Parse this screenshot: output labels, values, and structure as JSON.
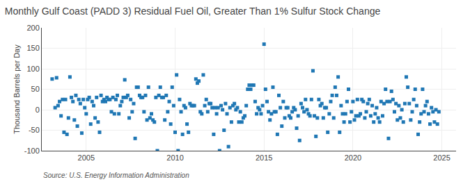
{
  "chart_data": {
    "type": "scatter",
    "title": "Monthly Gulf Coast (PADD 3) Residual Fuel Oil, Greater Than 1% Sulfur Stock Change",
    "ylabel": "Thousand Barrels per Day",
    "source": "Source: U.S. Energy Information Administration",
    "marker": "square",
    "grid": true,
    "xlim": [
      2002.5,
      2025.8
    ],
    "xticks": [
      2005,
      2010,
      2015,
      2020,
      2025
    ],
    "ylim": [
      -100,
      200
    ],
    "yticks": [
      -100,
      -50,
      0,
      50,
      100,
      150,
      200
    ],
    "x": [
      2003.083,
      2003.25,
      2003.333,
      2003.417,
      2003.5,
      2003.583,
      2003.667,
      2003.75,
      2003.833,
      2003.917,
      2004.0,
      2004.083,
      2004.167,
      2004.25,
      2004.333,
      2004.417,
      2004.5,
      2004.583,
      2004.667,
      2004.75,
      2004.833,
      2004.917,
      2005.0,
      2005.083,
      2005.167,
      2005.25,
      2005.333,
      2005.417,
      2005.5,
      2005.583,
      2005.667,
      2005.75,
      2005.833,
      2005.917,
      2006.0,
      2006.083,
      2006.167,
      2006.25,
      2006.333,
      2006.417,
      2006.5,
      2006.583,
      2006.667,
      2006.75,
      2006.833,
      2006.917,
      2007.0,
      2007.083,
      2007.167,
      2007.25,
      2007.333,
      2007.417,
      2007.5,
      2007.583,
      2007.667,
      2007.75,
      2007.833,
      2007.917,
      2008.0,
      2008.083,
      2008.167,
      2008.25,
      2008.333,
      2008.417,
      2008.5,
      2008.583,
      2008.667,
      2008.75,
      2008.833,
      2008.917,
      2009.0,
      2009.083,
      2009.167,
      2009.25,
      2009.333,
      2009.417,
      2009.5,
      2009.583,
      2009.667,
      2009.75,
      2009.833,
      2009.917,
      2010.0,
      2010.083,
      2010.167,
      2010.25,
      2010.333,
      2010.417,
      2010.5,
      2010.583,
      2010.667,
      2010.75,
      2010.833,
      2010.917,
      2011.0,
      2011.083,
      2011.167,
      2011.25,
      2011.333,
      2011.417,
      2011.5,
      2011.583,
      2011.667,
      2011.75,
      2011.833,
      2011.917,
      2012.0,
      2012.083,
      2012.167,
      2012.25,
      2012.333,
      2012.417,
      2012.5,
      2012.583,
      2012.667,
      2012.75,
      2012.833,
      2012.917,
      2013.0,
      2013.083,
      2013.167,
      2013.25,
      2013.333,
      2013.417,
      2013.5,
      2013.583,
      2013.667,
      2013.75,
      2013.833,
      2013.917,
      2014.0,
      2014.083,
      2014.167,
      2014.25,
      2014.333,
      2014.417,
      2014.5,
      2014.583,
      2014.667,
      2014.75,
      2014.833,
      2014.917,
      2015.0,
      2015.083,
      2015.167,
      2015.25,
      2015.333,
      2015.417,
      2015.5,
      2015.583,
      2015.667,
      2015.75,
      2015.833,
      2015.917,
      2016.0,
      2016.083,
      2016.167,
      2016.25,
      2016.333,
      2016.417,
      2016.5,
      2016.583,
      2016.667,
      2016.75,
      2016.833,
      2016.917,
      2017.0,
      2017.083,
      2017.167,
      2017.25,
      2017.333,
      2017.417,
      2017.5,
      2017.583,
      2017.667,
      2017.75,
      2017.833,
      2017.917,
      2018.0,
      2018.083,
      2018.167,
      2018.25,
      2018.333,
      2018.417,
      2018.5,
      2018.583,
      2018.667,
      2018.75,
      2018.833,
      2018.917,
      2019.0,
      2019.083,
      2019.167,
      2019.25,
      2019.333,
      2019.417,
      2019.5,
      2019.583,
      2019.667,
      2019.75,
      2019.833,
      2019.917,
      2020.0,
      2020.083,
      2020.167,
      2020.25,
      2020.333,
      2020.417,
      2020.5,
      2020.583,
      2020.667,
      2020.75,
      2020.833,
      2020.917,
      2021.0,
      2021.083,
      2021.167,
      2021.25,
      2021.333,
      2021.417,
      2021.5,
      2021.583,
      2021.667,
      2021.75,
      2021.833,
      2021.917,
      2022.0,
      2022.083,
      2022.167,
      2022.25,
      2022.333,
      2022.417,
      2022.5,
      2022.583,
      2022.667,
      2022.75,
      2022.833,
      2022.917,
      2023.0,
      2023.083,
      2023.167,
      2023.25,
      2023.333,
      2023.417,
      2023.5,
      2023.583,
      2023.667,
      2023.75,
      2023.833,
      2023.917,
      2024.0,
      2024.083,
      2024.167,
      2024.25,
      2024.333,
      2024.417,
      2024.5,
      2024.583,
      2024.667,
      2024.75,
      2024.833
    ],
    "values": [
      75,
      5,
      78,
      10,
      20,
      -15,
      25,
      -55,
      25,
      -60,
      -20,
      80,
      30,
      20,
      -25,
      35,
      -40,
      25,
      15,
      -57,
      25,
      5,
      -10,
      25,
      30,
      -35,
      20,
      10,
      -20,
      30,
      -30,
      -55,
      35,
      20,
      25,
      20,
      30,
      25,
      25,
      -5,
      30,
      -10,
      25,
      35,
      -10,
      10,
      20,
      30,
      73,
      30,
      35,
      -20,
      25,
      -5,
      15,
      -70,
      55,
      55,
      35,
      30,
      30,
      -5,
      35,
      -25,
      55,
      -20,
      -10,
      -25,
      -30,
      30,
      -100,
      35,
      55,
      30,
      30,
      -25,
      35,
      -5,
      20,
      -35,
      55,
      10,
      -55,
      85,
      -100,
      25,
      -5,
      -60,
      10,
      5,
      -35,
      -55,
      15,
      10,
      10,
      10,
      75,
      65,
      70,
      -5,
      -10,
      85,
      10,
      25,
      -5,
      15,
      15,
      5,
      -60,
      5,
      -10,
      5,
      -100,
      10,
      0,
      -50,
      15,
      -10,
      -90,
      5,
      -30,
      10,
      15,
      0,
      5,
      -30,
      -5,
      -30,
      -20,
      -15,
      10,
      50,
      60,
      50,
      60,
      60,
      20,
      -10,
      5,
      0,
      -10,
      10,
      160,
      50,
      20,
      -5,
      -25,
      -10,
      55,
      -5,
      -5,
      -60,
      35,
      5,
      -40,
      20,
      -20,
      5,
      5,
      -15,
      -20,
      -5,
      5,
      0,
      -45,
      -15,
      -75,
      15,
      5,
      -5,
      25,
      0,
      -10,
      -15,
      25,
      95,
      -15,
      -65,
      -20,
      25,
      10,
      15,
      -20,
      5,
      5,
      -55,
      -10,
      20,
      35,
      -20,
      55,
      35,
      80,
      -55,
      10,
      -10,
      -30,
      -10,
      20,
      50,
      -30,
      -5,
      20,
      -25,
      -15,
      25,
      -15,
      -10,
      25,
      20,
      -20,
      -5,
      15,
      25,
      -15,
      10,
      -30,
      -10,
      5,
      -20,
      -30,
      20,
      -15,
      15,
      50,
      20,
      -70,
      20,
      45,
      25,
      -5,
      15,
      -25,
      10,
      -20,
      0,
      -30,
      15,
      80,
      55,
      15,
      -25,
      -5,
      25,
      50,
      10,
      -60,
      -30,
      -10,
      50,
      -5,
      10,
      20,
      -10,
      -35,
      5,
      -5,
      -30,
      0,
      -35,
      -5
    ]
  }
}
